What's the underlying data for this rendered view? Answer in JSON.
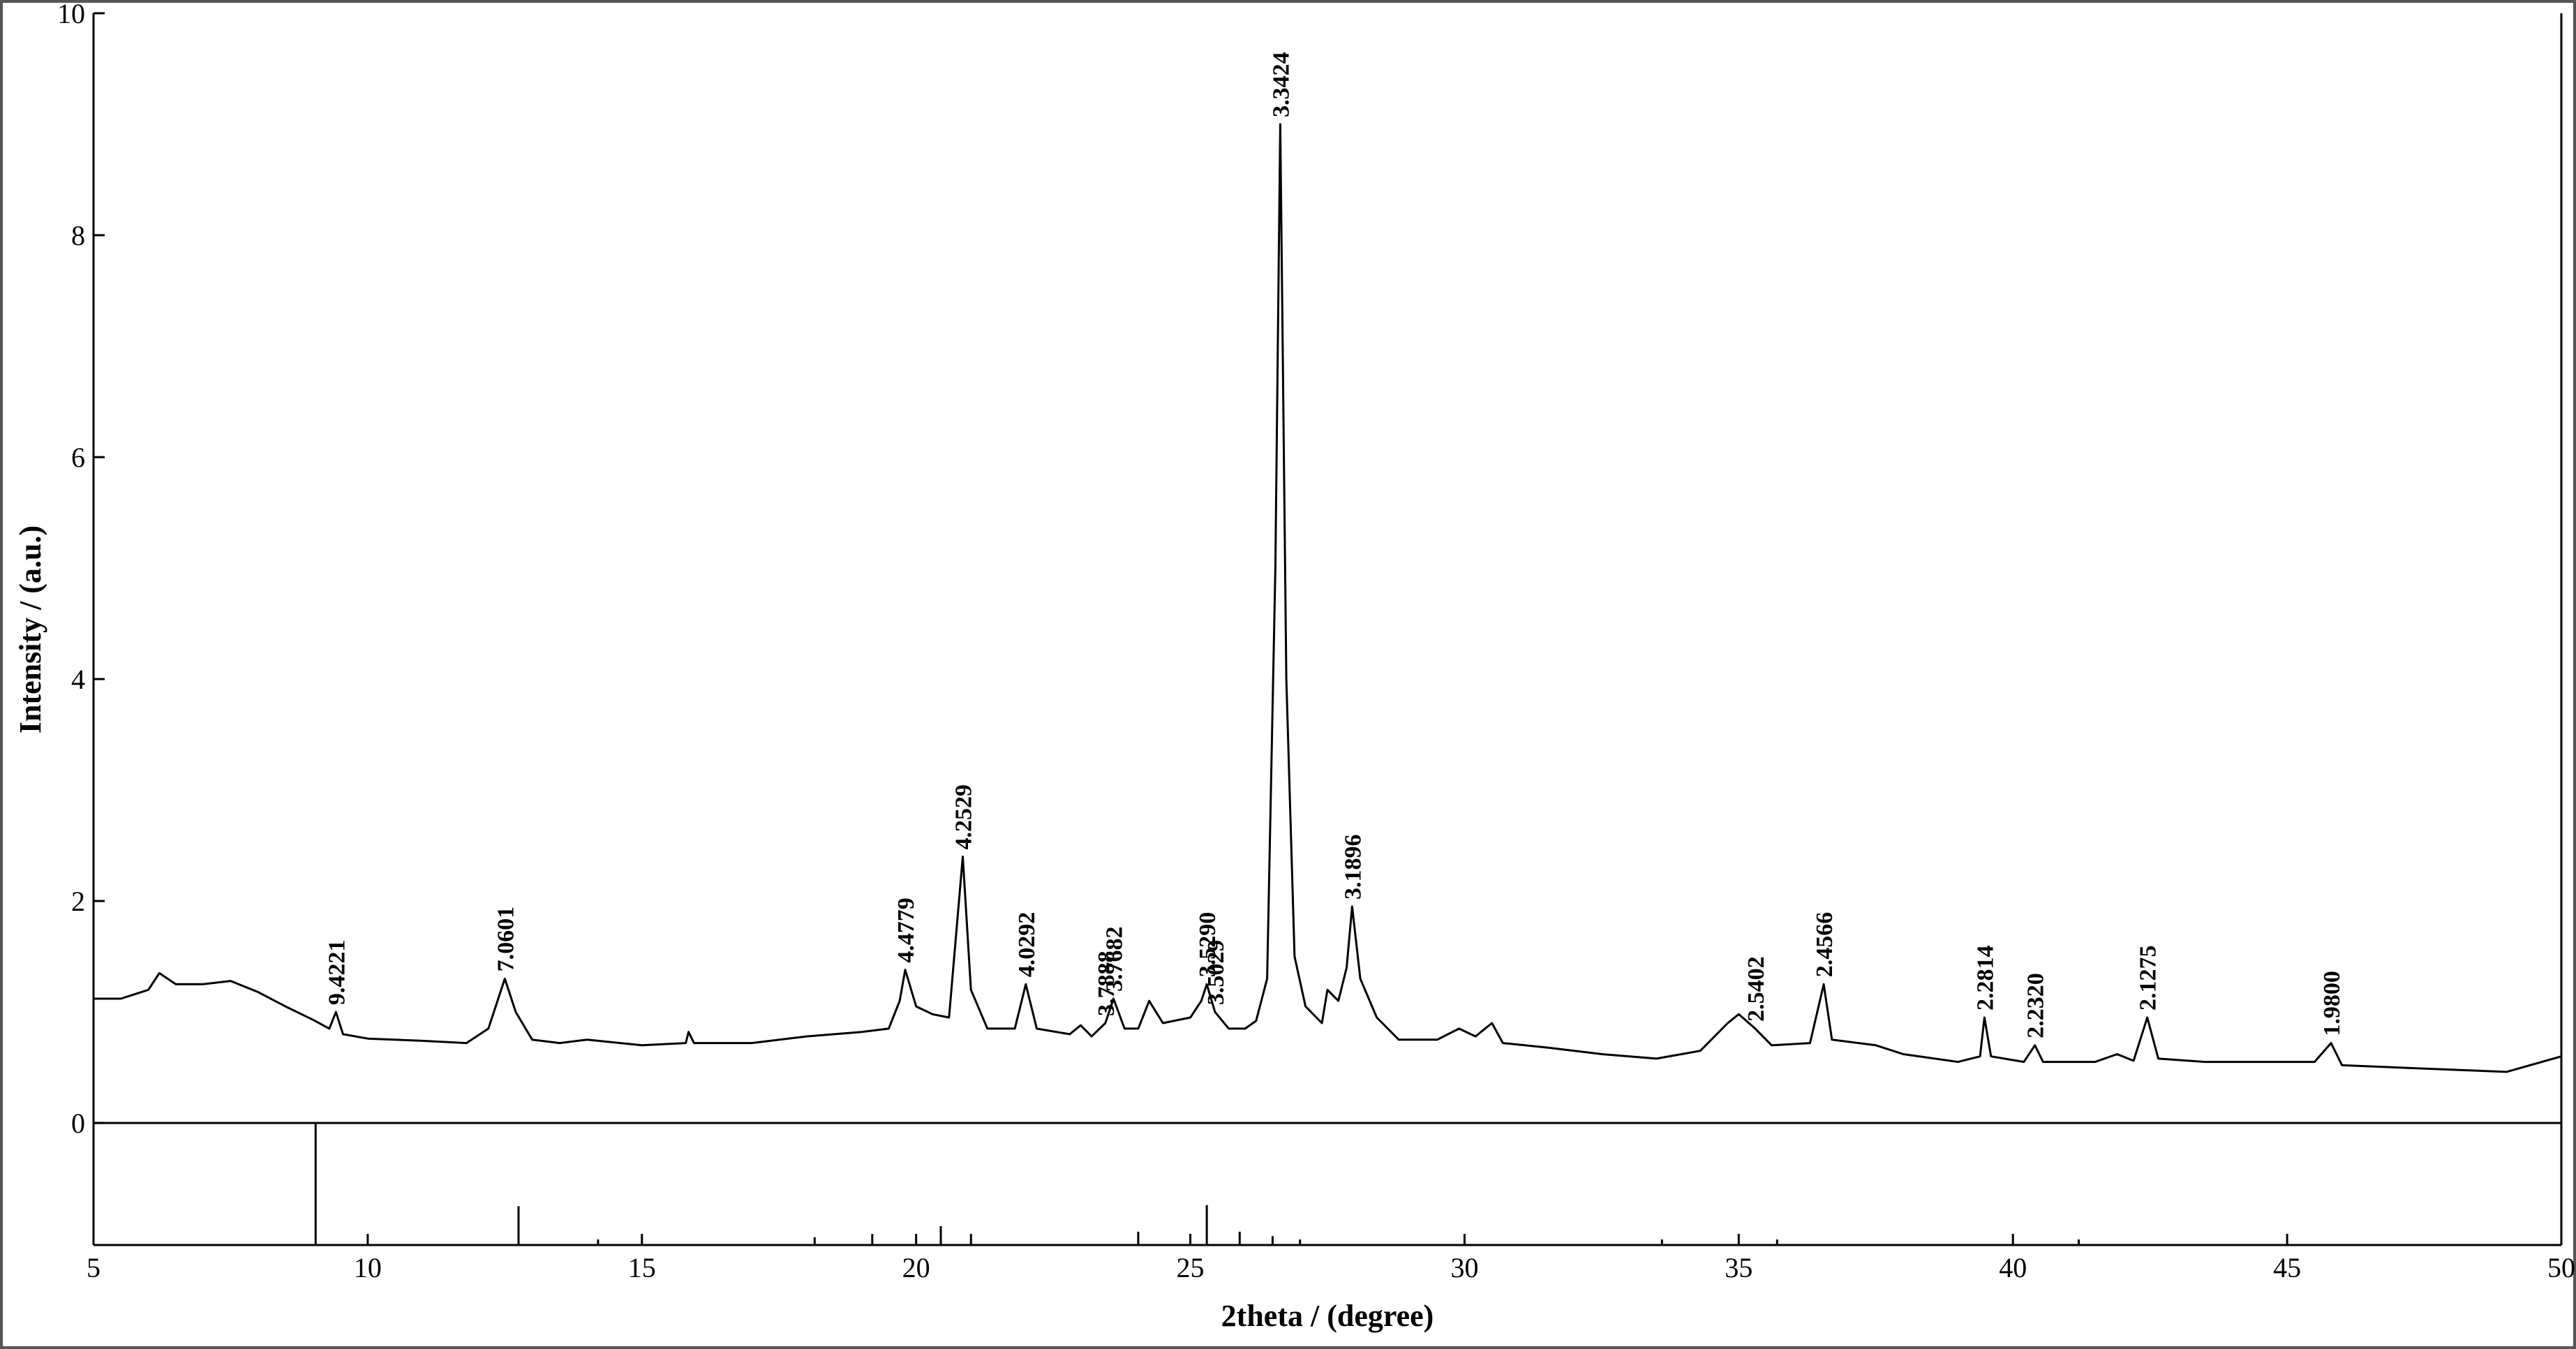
{
  "chart_data": {
    "type": "line",
    "x_label": "2theta / (degree)",
    "y_label": "Intensity / (a.u.)",
    "color": "#000000",
    "xlim": [
      5,
      50
    ],
    "xticks": [
      5,
      10,
      15,
      20,
      25,
      30,
      35,
      40,
      45,
      50
    ],
    "ylim": [
      -1.1,
      10
    ],
    "yticks": [
      0,
      2,
      4,
      6,
      8,
      10
    ],
    "x": [
      5.0,
      5.5,
      6.0,
      6.2,
      6.5,
      7.0,
      7.5,
      8.0,
      8.5,
      9.0,
      9.3,
      9.42,
      9.55,
      10.0,
      11.0,
      11.8,
      12.2,
      12.5,
      12.7,
      13.0,
      13.5,
      14.0,
      15.0,
      15.8,
      15.85,
      15.95,
      17.0,
      18.0,
      19.0,
      19.5,
      19.7,
      19.8,
      20.0,
      20.3,
      20.6,
      20.85,
      21.0,
      21.3,
      21.8,
      22.0,
      22.2,
      22.8,
      23.0,
      23.2,
      23.45,
      23.6,
      23.8,
      24.05,
      24.25,
      24.5,
      25.0,
      25.2,
      25.3,
      25.45,
      25.7,
      26.0,
      26.2,
      26.4,
      26.55,
      26.64,
      26.75,
      26.9,
      27.1,
      27.4,
      27.5,
      27.7,
      27.85,
      27.95,
      28.1,
      28.4,
      28.8,
      29.5,
      29.9,
      30.2,
      30.5,
      30.7,
      31.5,
      32.5,
      33.5,
      34.3,
      34.8,
      35.0,
      35.3,
      35.6,
      36.3,
      36.55,
      36.7,
      37.5,
      38.0,
      39.0,
      39.4,
      39.48,
      39.6,
      40.2,
      40.4,
      40.55,
      41.5,
      41.9,
      42.2,
      42.45,
      42.65,
      43.5,
      44.5,
      45.5,
      45.8,
      46.0,
      47.0,
      48.0,
      49.0,
      50.0
    ],
    "values": [
      1.12,
      1.12,
      1.2,
      1.35,
      1.25,
      1.25,
      1.28,
      1.18,
      1.05,
      0.93,
      0.85,
      1.0,
      0.8,
      0.76,
      0.74,
      0.72,
      0.85,
      1.3,
      1.0,
      0.75,
      0.72,
      0.75,
      0.7,
      0.72,
      0.82,
      0.72,
      0.72,
      0.78,
      0.82,
      0.85,
      1.1,
      1.38,
      1.05,
      0.98,
      0.95,
      2.4,
      1.2,
      0.85,
      0.85,
      1.25,
      0.85,
      0.8,
      0.88,
      0.78,
      0.9,
      1.12,
      0.85,
      0.85,
      1.1,
      0.9,
      0.95,
      1.1,
      1.25,
      1.0,
      0.85,
      0.85,
      0.92,
      1.3,
      5.0,
      9.0,
      4.0,
      1.5,
      1.05,
      0.9,
      1.2,
      1.1,
      1.4,
      1.95,
      1.3,
      0.95,
      0.75,
      0.75,
      0.85,
      0.78,
      0.9,
      0.72,
      0.68,
      0.62,
      0.58,
      0.65,
      0.9,
      0.98,
      0.85,
      0.7,
      0.72,
      1.25,
      0.75,
      0.7,
      0.62,
      0.55,
      0.6,
      0.95,
      0.6,
      0.55,
      0.7,
      0.55,
      0.55,
      0.62,
      0.56,
      0.95,
      0.58,
      0.55,
      0.55,
      0.55,
      0.72,
      0.52,
      0.5,
      0.48,
      0.46,
      0.6
    ],
    "reference_lines": {
      "x": [
        9.05,
        12.75,
        14.2,
        18.15,
        19.2,
        20.45,
        21.0,
        24.05,
        25.3,
        25.9,
        26.5,
        27.0,
        33.6,
        35.7,
        41.2
      ],
      "values": [
        0,
        -0.75,
        -1.05,
        -1.03,
        -1.0,
        -0.93,
        -1.0,
        -0.98,
        -0.74,
        -0.98,
        -1.02,
        -1.05,
        -1.05,
        -1.05,
        -1.05
      ]
    },
    "annotations": [
      {
        "text": "9.4221",
        "x": 9.42
      },
      {
        "text": "7.0601",
        "x": 12.5
      },
      {
        "text": "4.4779",
        "x": 19.8
      },
      {
        "text": "4.2529",
        "x": 20.85
      },
      {
        "text": "4.0292",
        "x": 22.0
      },
      {
        "text": "3.7888",
        "x": 23.45
      },
      {
        "text": "3.7682",
        "x": 23.6
      },
      {
        "text": "3.5290",
        "x": 25.3
      },
      {
        "text": "3.5029",
        "x": 25.45
      },
      {
        "text": "3.3424",
        "x": 26.64
      },
      {
        "text": "3.1896",
        "x": 27.95
      },
      {
        "text": "2.5402",
        "x": 35.3
      },
      {
        "text": "2.4566",
        "x": 36.55
      },
      {
        "text": "2.2814",
        "x": 39.48
      },
      {
        "text": "2.2320",
        "x": 40.4
      },
      {
        "text": "2.1275",
        "x": 42.45
      },
      {
        "text": "1.9800",
        "x": 45.8
      }
    ]
  }
}
